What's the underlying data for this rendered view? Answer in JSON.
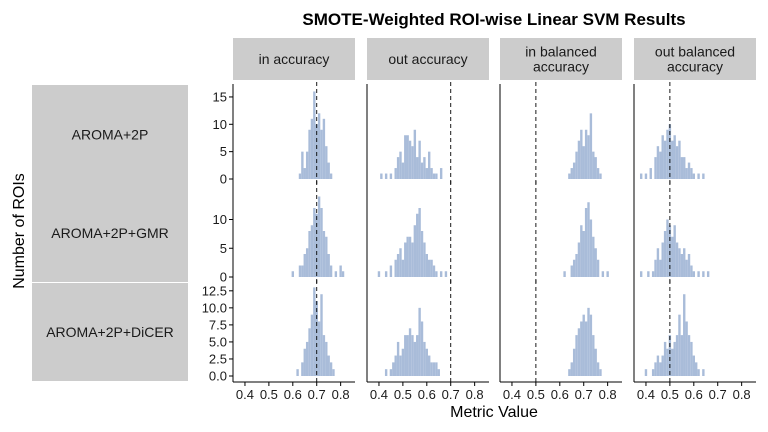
{
  "chart_data": {
    "type": "histogram",
    "title": "SMOTE-Weighted ROI-wise Linear SVM Results",
    "xlabel": "Metric Value",
    "ylabel": "Number of ROIs",
    "columns": [
      "in accuracy",
      "out accuracy",
      "in balanced\naccuracy",
      "out balanced\naccuracy"
    ],
    "rows": [
      "AROMA+2P",
      "AROMA+2P+GMR",
      "AROMA+2P+DiCER"
    ],
    "xlim": [
      0.35,
      0.86
    ],
    "x_ticks": [
      0.4,
      0.5,
      0.6,
      0.7,
      0.8
    ],
    "x_tick_labels": [
      "0.4",
      "0.5",
      "0.6",
      "0.7",
      "0.8"
    ],
    "bin_width": 0.01,
    "row_axes": [
      {
        "ylim": [
          0,
          17
        ],
        "ticks": [
          0,
          5,
          10,
          15
        ],
        "tick_labels": [
          "0",
          "5",
          "10",
          "15"
        ]
      },
      {
        "ylim": [
          0,
          16
        ],
        "ticks": [
          0,
          5,
          10
        ],
        "tick_labels": [
          "0",
          "5",
          "10"
        ]
      },
      {
        "ylim": [
          0,
          13.5
        ],
        "ticks": [
          0,
          2.5,
          5,
          7.5,
          10,
          12.5
        ],
        "tick_labels": [
          "0.0",
          "2.5",
          "5.0",
          "7.5",
          "10.0",
          "12.5"
        ]
      }
    ],
    "reference_lines": [
      0.7,
      0.7,
      0.5,
      0.5
    ],
    "bar_color": "#a9bcd9",
    "strip_color": "#cccccc",
    "panels": [
      [
        {
          "bins": [
            [
              0.63,
              1
            ],
            [
              0.64,
              5
            ],
            [
              0.65,
              2
            ],
            [
              0.66,
              5
            ],
            [
              0.67,
              9
            ],
            [
              0.68,
              11
            ],
            [
              0.69,
              16
            ],
            [
              0.7,
              10
            ],
            [
              0.71,
              12
            ],
            [
              0.72,
              9
            ],
            [
              0.73,
              11
            ],
            [
              0.74,
              6
            ],
            [
              0.75,
              3
            ],
            [
              0.76,
              1
            ]
          ]
        },
        {
          "bins": [
            [
              0.41,
              1
            ],
            [
              0.43,
              1
            ],
            [
              0.45,
              1
            ],
            [
              0.47,
              2
            ],
            [
              0.48,
              4
            ],
            [
              0.49,
              5
            ],
            [
              0.5,
              3
            ],
            [
              0.51,
              8
            ],
            [
              0.52,
              8
            ],
            [
              0.53,
              7
            ],
            [
              0.54,
              6
            ],
            [
              0.55,
              9
            ],
            [
              0.56,
              4
            ],
            [
              0.57,
              7
            ],
            [
              0.58,
              3
            ],
            [
              0.59,
              4
            ],
            [
              0.6,
              2
            ],
            [
              0.61,
              5
            ],
            [
              0.62,
              2
            ],
            [
              0.63,
              1
            ],
            [
              0.64,
              1
            ],
            [
              0.66,
              2
            ]
          ]
        },
        {
          "bins": [
            [
              0.64,
              1
            ],
            [
              0.65,
              2
            ],
            [
              0.66,
              3
            ],
            [
              0.67,
              5
            ],
            [
              0.68,
              7
            ],
            [
              0.69,
              9
            ],
            [
              0.7,
              6
            ],
            [
              0.71,
              9
            ],
            [
              0.72,
              8
            ],
            [
              0.73,
              12
            ],
            [
              0.74,
              5
            ],
            [
              0.75,
              4
            ],
            [
              0.76,
              2
            ],
            [
              0.77,
              1
            ]
          ]
        },
        {
          "bins": [
            [
              0.38,
              1
            ],
            [
              0.4,
              1
            ],
            [
              0.42,
              2
            ],
            [
              0.44,
              4
            ],
            [
              0.45,
              6
            ],
            [
              0.46,
              5
            ],
            [
              0.47,
              8
            ],
            [
              0.48,
              7
            ],
            [
              0.49,
              9
            ],
            [
              0.5,
              10
            ],
            [
              0.51,
              7
            ],
            [
              0.52,
              8
            ],
            [
              0.53,
              6
            ],
            [
              0.54,
              7
            ],
            [
              0.55,
              4
            ],
            [
              0.56,
              4
            ],
            [
              0.57,
              2
            ],
            [
              0.58,
              3
            ],
            [
              0.59,
              2
            ],
            [
              0.6,
              1
            ],
            [
              0.62,
              1
            ],
            [
              0.64,
              1
            ]
          ]
        }
      ],
      [
        {
          "bins": [
            [
              0.6,
              1
            ],
            [
              0.63,
              2
            ],
            [
              0.64,
              2
            ],
            [
              0.65,
              4
            ],
            [
              0.66,
              5
            ],
            [
              0.67,
              8
            ],
            [
              0.68,
              9
            ],
            [
              0.69,
              12
            ],
            [
              0.7,
              11
            ],
            [
              0.71,
              14
            ],
            [
              0.72,
              12
            ],
            [
              0.73,
              8
            ],
            [
              0.74,
              7
            ],
            [
              0.75,
              4
            ],
            [
              0.76,
              2
            ],
            [
              0.78,
              1
            ],
            [
              0.8,
              2
            ],
            [
              0.81,
              1
            ]
          ]
        },
        {
          "bins": [
            [
              0.4,
              1
            ],
            [
              0.43,
              1
            ],
            [
              0.45,
              2
            ],
            [
              0.47,
              3
            ],
            [
              0.48,
              4
            ],
            [
              0.49,
              5
            ],
            [
              0.5,
              3
            ],
            [
              0.51,
              6
            ],
            [
              0.52,
              7
            ],
            [
              0.53,
              7
            ],
            [
              0.54,
              6
            ],
            [
              0.55,
              9
            ],
            [
              0.56,
              11
            ],
            [
              0.57,
              12
            ],
            [
              0.58,
              8
            ],
            [
              0.59,
              6
            ],
            [
              0.6,
              4
            ],
            [
              0.61,
              3
            ],
            [
              0.62,
              3
            ],
            [
              0.63,
              2
            ],
            [
              0.64,
              1
            ],
            [
              0.66,
              1
            ],
            [
              0.68,
              1
            ]
          ]
        },
        {
          "bins": [
            [
              0.62,
              1
            ],
            [
              0.65,
              2
            ],
            [
              0.66,
              3
            ],
            [
              0.67,
              4
            ],
            [
              0.68,
              6
            ],
            [
              0.69,
              9
            ],
            [
              0.7,
              8
            ],
            [
              0.71,
              12
            ],
            [
              0.72,
              13
            ],
            [
              0.73,
              10
            ],
            [
              0.74,
              7
            ],
            [
              0.75,
              5
            ],
            [
              0.76,
              3
            ],
            [
              0.78,
              1
            ],
            [
              0.8,
              1
            ]
          ]
        },
        {
          "bins": [
            [
              0.38,
              1
            ],
            [
              0.41,
              1
            ],
            [
              0.43,
              1
            ],
            [
              0.44,
              3
            ],
            [
              0.45,
              5
            ],
            [
              0.46,
              3
            ],
            [
              0.47,
              6
            ],
            [
              0.48,
              8
            ],
            [
              0.49,
              10
            ],
            [
              0.5,
              9
            ],
            [
              0.51,
              7
            ],
            [
              0.52,
              9
            ],
            [
              0.53,
              6
            ],
            [
              0.54,
              5
            ],
            [
              0.55,
              4
            ],
            [
              0.56,
              5
            ],
            [
              0.57,
              3
            ],
            [
              0.58,
              4
            ],
            [
              0.59,
              2
            ],
            [
              0.6,
              1
            ],
            [
              0.62,
              1
            ],
            [
              0.64,
              1
            ],
            [
              0.66,
              1
            ]
          ]
        }
      ],
      [
        {
          "bins": [
            [
              0.62,
              1
            ],
            [
              0.64,
              2
            ],
            [
              0.65,
              4
            ],
            [
              0.66,
              5
            ],
            [
              0.67,
              7
            ],
            [
              0.68,
              9
            ],
            [
              0.69,
              13
            ],
            [
              0.7,
              11
            ],
            [
              0.71,
              8
            ],
            [
              0.72,
              12
            ],
            [
              0.73,
              6
            ],
            [
              0.74,
              5
            ],
            [
              0.75,
              3
            ],
            [
              0.76,
              2
            ],
            [
              0.77,
              1
            ]
          ]
        },
        {
          "bins": [
            [
              0.43,
              1
            ],
            [
              0.45,
              1
            ],
            [
              0.46,
              2
            ],
            [
              0.47,
              3
            ],
            [
              0.48,
              5
            ],
            [
              0.49,
              3
            ],
            [
              0.5,
              4
            ],
            [
              0.51,
              6
            ],
            [
              0.52,
              6
            ],
            [
              0.53,
              7
            ],
            [
              0.54,
              6
            ],
            [
              0.55,
              5
            ],
            [
              0.56,
              6
            ],
            [
              0.57,
              10
            ],
            [
              0.58,
              8
            ],
            [
              0.59,
              5
            ],
            [
              0.6,
              4
            ],
            [
              0.61,
              3
            ],
            [
              0.62,
              2
            ],
            [
              0.63,
              2
            ],
            [
              0.64,
              2
            ],
            [
              0.65,
              1
            ]
          ]
        },
        {
          "bins": [
            [
              0.64,
              1
            ],
            [
              0.65,
              2
            ],
            [
              0.66,
              4
            ],
            [
              0.67,
              6
            ],
            [
              0.68,
              7
            ],
            [
              0.69,
              8
            ],
            [
              0.7,
              9
            ],
            [
              0.71,
              8
            ],
            [
              0.72,
              10
            ],
            [
              0.73,
              9
            ],
            [
              0.74,
              6
            ],
            [
              0.75,
              4
            ],
            [
              0.76,
              2
            ],
            [
              0.77,
              1
            ]
          ]
        },
        {
          "bins": [
            [
              0.4,
              1
            ],
            [
              0.43,
              1
            ],
            [
              0.44,
              2
            ],
            [
              0.45,
              3
            ],
            [
              0.46,
              2
            ],
            [
              0.47,
              3
            ],
            [
              0.48,
              5
            ],
            [
              0.49,
              4
            ],
            [
              0.5,
              6
            ],
            [
              0.51,
              4
            ],
            [
              0.52,
              5
            ],
            [
              0.53,
              6
            ],
            [
              0.54,
              9
            ],
            [
              0.55,
              6
            ],
            [
              0.56,
              12
            ],
            [
              0.57,
              8
            ],
            [
              0.58,
              6
            ],
            [
              0.59,
              5
            ],
            [
              0.6,
              3
            ],
            [
              0.61,
              2
            ],
            [
              0.62,
              1
            ],
            [
              0.64,
              1
            ]
          ]
        }
      ]
    ]
  }
}
